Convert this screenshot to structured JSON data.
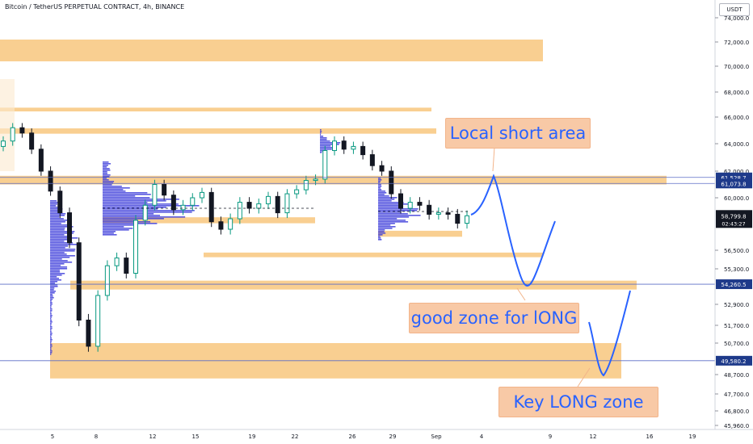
{
  "header": {
    "symbol_title": "Bitcoin / TetherUS PERPETUAL CONTRACT, 4h, BINANCE",
    "currency": "USDT"
  },
  "chart_data": {
    "type": "candlestick",
    "title": "Bitcoin / TetherUS PERPETUAL CONTRACT, 4h, BINANCE",
    "y_axis": {
      "side": "right",
      "ylim": [
        45960,
        74500
      ],
      "tick_labels": [
        "74,000.0",
        "72,000.0",
        "70,000.0",
        "68,000.0",
        "66,000.0",
        "64,000.0",
        "62,000.0",
        "60,000.0",
        "56,500.0",
        "55,300.0",
        "52,900.0",
        "51,700.0",
        "50,700.0",
        "48,700.0",
        "47,700.0",
        "46,800.0",
        "45,960.0"
      ],
      "tick_values": [
        74000,
        72000,
        70000,
        68000,
        66000,
        64000,
        62000,
        60000,
        56500,
        55300,
        52900,
        51700,
        50700,
        48700,
        47700,
        46800,
        45960
      ]
    },
    "x_axis": {
      "tick_labels": [
        "5",
        "8",
        "12",
        "15",
        "19",
        "22",
        "26",
        "29",
        "Sep",
        "4",
        "9",
        "12",
        "16",
        "19"
      ]
    },
    "price_tags": [
      {
        "label": "61,528.7",
        "value": 61528.7,
        "style": "line"
      },
      {
        "label": "61,073.8",
        "value": 61073.8,
        "style": "line"
      },
      {
        "label": "58,799.8",
        "value": 58799.8,
        "style": "current",
        "countdown": "02:43:27"
      },
      {
        "label": "54,260.5",
        "value": 54260.5,
        "style": "line"
      },
      {
        "label": "49,580.2",
        "value": 49580.2,
        "style": "line"
      }
    ],
    "zones": [
      {
        "from": 70400,
        "to": 72200
      },
      {
        "from": 66450,
        "to": 66750
      },
      {
        "from": 64750,
        "to": 65150
      },
      {
        "from": 61000,
        "to": 61650
      },
      {
        "from": 58300,
        "to": 58700
      },
      {
        "from": 57400,
        "to": 57800
      },
      {
        "from": 56050,
        "to": 56350
      },
      {
        "from": 53900,
        "to": 54500
      },
      {
        "from": 48500,
        "to": 50700
      }
    ],
    "series": [
      {
        "values": [
          64200,
          65200,
          64800,
          63600,
          62000,
          60500,
          59000,
          57000,
          52000,
          50500,
          53500,
          55500,
          56000,
          55000,
          58500,
          59500,
          61000,
          60200,
          59200,
          59500,
          60000,
          60400,
          58400,
          57900,
          58600,
          59700,
          59300,
          59600,
          60100,
          59000,
          60300,
          60600,
          61300,
          61400,
          63500,
          64200,
          63600,
          63800,
          63200,
          62400,
          62000,
          60300,
          59300,
          59700,
          59500,
          58900,
          59000,
          58900,
          58300,
          58800
        ]
      }
    ],
    "annotations": [
      {
        "text": "Local short area"
      },
      {
        "text": "good zone for lONG"
      },
      {
        "text": "Key LONG zone"
      }
    ],
    "colors": {
      "up": "#089981",
      "down": "#131722",
      "zone": "#f7bf6c",
      "projection": "#2962ff",
      "volume_profile": "#3d3ddb",
      "callout_bg": "#f8c9a6"
    }
  }
}
